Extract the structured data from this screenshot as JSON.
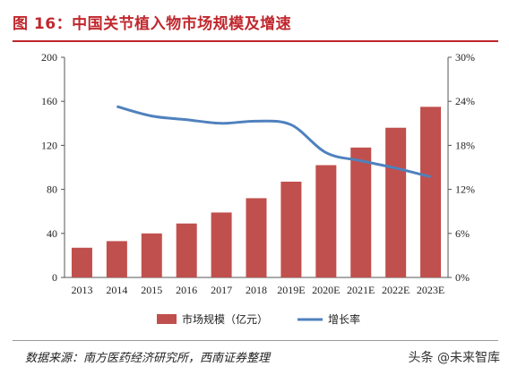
{
  "figure": {
    "title": "图 16：中国关节植入物市场规模及增速",
    "source": "数据来源：南方医药经济研究所，西南证券整理",
    "watermark": "头条 @未来智库"
  },
  "colors": {
    "title": "#c0272d",
    "bar": "#c0504d",
    "line": "#4f81bd"
  },
  "chart_data": {
    "type": "bar+line",
    "categories": [
      "2013",
      "2014",
      "2015",
      "2016",
      "2017",
      "2018",
      "2019E",
      "2020E",
      "2021E",
      "2022E",
      "2023E"
    ],
    "series": [
      {
        "name": "市场规模（亿元）",
        "type": "bar",
        "axis": "left",
        "values": [
          27,
          33,
          40,
          49,
          59,
          72,
          87,
          102,
          118,
          136,
          155
        ]
      },
      {
        "name": "增长率",
        "type": "line",
        "axis": "right",
        "values": [
          null,
          23.3,
          22.0,
          21.5,
          21.0,
          21.3,
          20.8,
          17.0,
          15.9,
          14.9,
          13.7
        ]
      }
    ],
    "y_left": {
      "lim": [
        0,
        200
      ],
      "ticks": [
        "0",
        "40",
        "80",
        "120",
        "160",
        "200"
      ]
    },
    "y_right": {
      "lim": [
        0,
        30
      ],
      "ticks": [
        "0%",
        "6%",
        "12%",
        "18%",
        "24%",
        "30%"
      ]
    },
    "legend_position": "bottom",
    "grid": false
  }
}
